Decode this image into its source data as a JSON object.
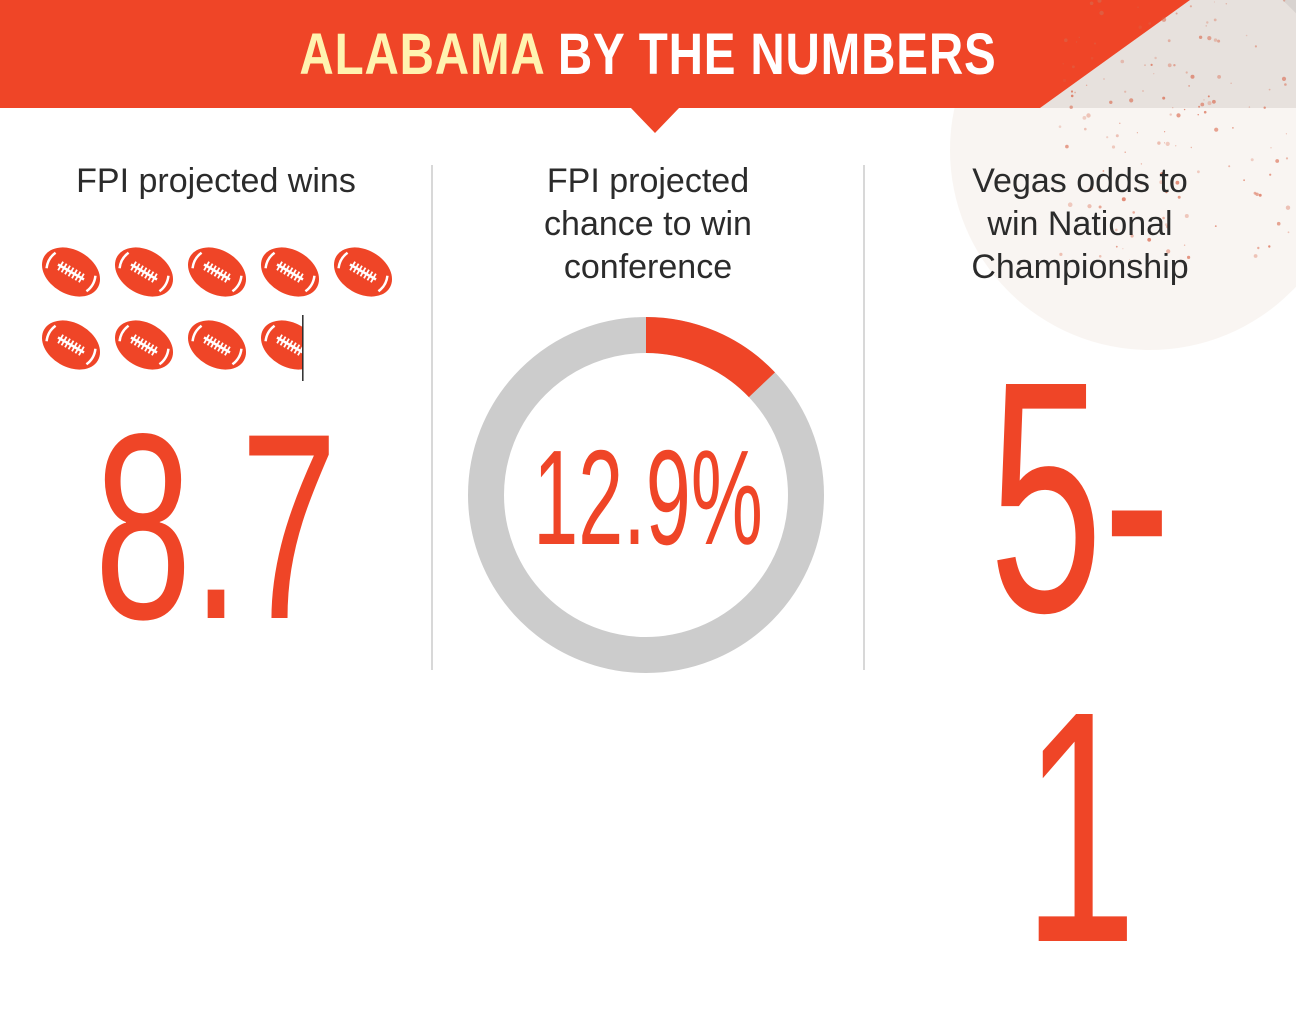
{
  "header": {
    "title_highlight": "ALABAMA",
    "title_rest": " BY THE NUMBERS",
    "colors": {
      "banner": "#ef4527",
      "highlight": "#fff3b0",
      "text": "#ffffff"
    }
  },
  "stats": [
    {
      "label": "FPI projected wins",
      "value": "8.7",
      "icon": "football-icon",
      "wins": 8.7,
      "icons_per_row": 5
    },
    {
      "label": "FPI projected\nchance to win\nconference",
      "value": "12.9%",
      "percent": 12.9
    },
    {
      "label": "Vegas odds to\nwin National\nChampionship",
      "value": "5-1"
    }
  ],
  "colors": {
    "accent": "#ef4527",
    "ring_track": "#cccccc",
    "divider": "#cccccc",
    "label_text": "#2b2b2b"
  }
}
